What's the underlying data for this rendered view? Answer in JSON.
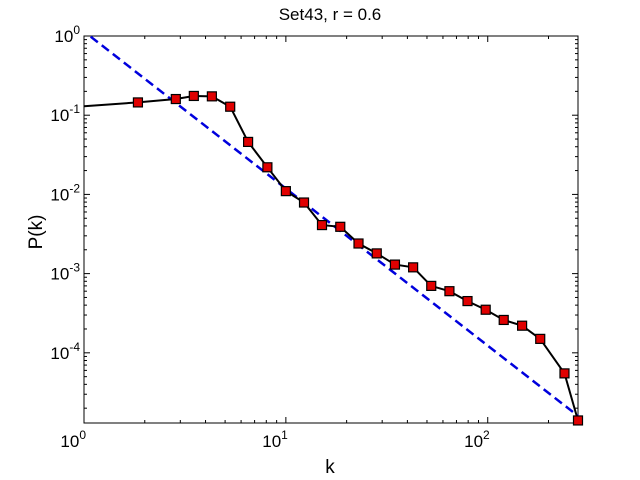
{
  "chart_data": {
    "type": "line",
    "title": "Set43, r = 0.6",
    "xlabel": "k",
    "ylabel": "P(k)",
    "xscale": "log",
    "yscale": "log",
    "xlim": [
      1,
      280
    ],
    "ylim": [
      1.3e-05,
      1
    ],
    "x_ticks": [
      {
        "value": 1,
        "base": "10",
        "exp": "0"
      },
      {
        "value": 10,
        "base": "10",
        "exp": "1"
      },
      {
        "value": 100,
        "base": "10",
        "exp": "2"
      }
    ],
    "y_ticks": [
      {
        "value": 1,
        "base": "10",
        "exp": "0"
      },
      {
        "value": 0.1,
        "base": "10",
        "exp": "-1"
      },
      {
        "value": 0.01,
        "base": "10",
        "exp": "-2"
      },
      {
        "value": 0.001,
        "base": "10",
        "exp": "-3"
      },
      {
        "value": 0.0001,
        "base": "10",
        "exp": "-4"
      }
    ],
    "grid": false,
    "series": [
      {
        "style": "solid line with square markers",
        "color": "#000000",
        "marker_color": "#e00000",
        "x": [
          1.85,
          2.85,
          3.5,
          4.3,
          5.3,
          6.5,
          8.1,
          10.0,
          12.3,
          15.1,
          18.6,
          22.9,
          28.2,
          34.7,
          42.7,
          52.5,
          64.6,
          79.4,
          97.7,
          120,
          148,
          182,
          240,
          280
        ],
        "y": [
          0.145,
          0.16,
          0.175,
          0.173,
          0.128,
          0.046,
          0.022,
          0.011,
          0.0079,
          0.0041,
          0.0039,
          0.0024,
          0.0018,
          0.0013,
          0.0012,
          0.0007,
          0.0006,
          0.00045,
          0.00035,
          0.00026,
          0.00022,
          0.00015,
          5.5e-05,
          1.4e-05
        ],
        "curve_start": {
          "x": 1.0,
          "y": 0.13
        }
      },
      {
        "style": "dashed power-law fit",
        "color": "#0000dd",
        "x": [
          1.08,
          280
        ],
        "y": [
          0.98,
          1.6e-05
        ]
      }
    ]
  }
}
